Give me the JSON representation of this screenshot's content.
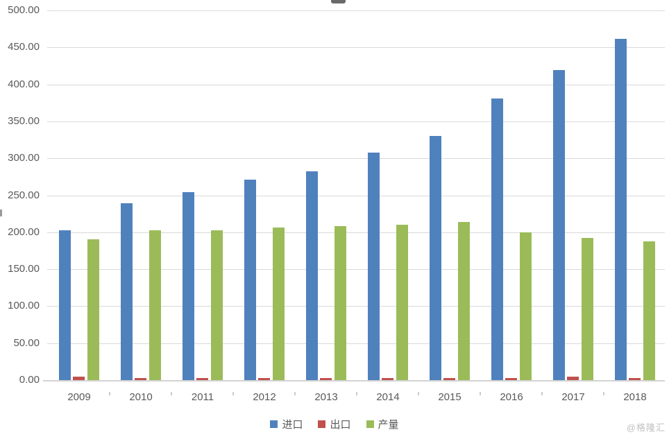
{
  "chart_data": {
    "type": "bar",
    "title": "",
    "categories": [
      "2009",
      "2010",
      "2011",
      "2012",
      "2013",
      "2014",
      "2015",
      "2016",
      "2017",
      "2018"
    ],
    "series": [
      {
        "name": "进口",
        "key": "import",
        "color": "#4F81BD",
        "values": [
          203,
          239,
          254,
          271,
          282,
          308,
          330,
          381,
          419,
          462
        ]
      },
      {
        "name": "出口",
        "key": "export",
        "color": "#C0504D",
        "values": [
          4.5,
          2.5,
          2.5,
          3,
          2.5,
          3,
          2.5,
          2.5,
          5,
          2.5
        ]
      },
      {
        "name": "产量",
        "key": "production",
        "color": "#9BBB59",
        "values": [
          190,
          203,
          203,
          206,
          208,
          210,
          214,
          200,
          192,
          188
        ]
      }
    ],
    "ylim": [
      0,
      500
    ],
    "y_tick_step": 50,
    "y_tick_labels": [
      "0.00",
      "50.00",
      "100.00",
      "150.00",
      "200.00",
      "250.00",
      "300.00",
      "350.00",
      "400.00",
      "450.00",
      "500.00"
    ],
    "grid": true,
    "legend_position": "bottom"
  },
  "colors": {
    "gridline": "#d9d9d9",
    "axis_line": "#d3d3d3",
    "axis_text": "#595959",
    "watermark_text": "#c0c0c0"
  },
  "watermark": "@格隆汇"
}
